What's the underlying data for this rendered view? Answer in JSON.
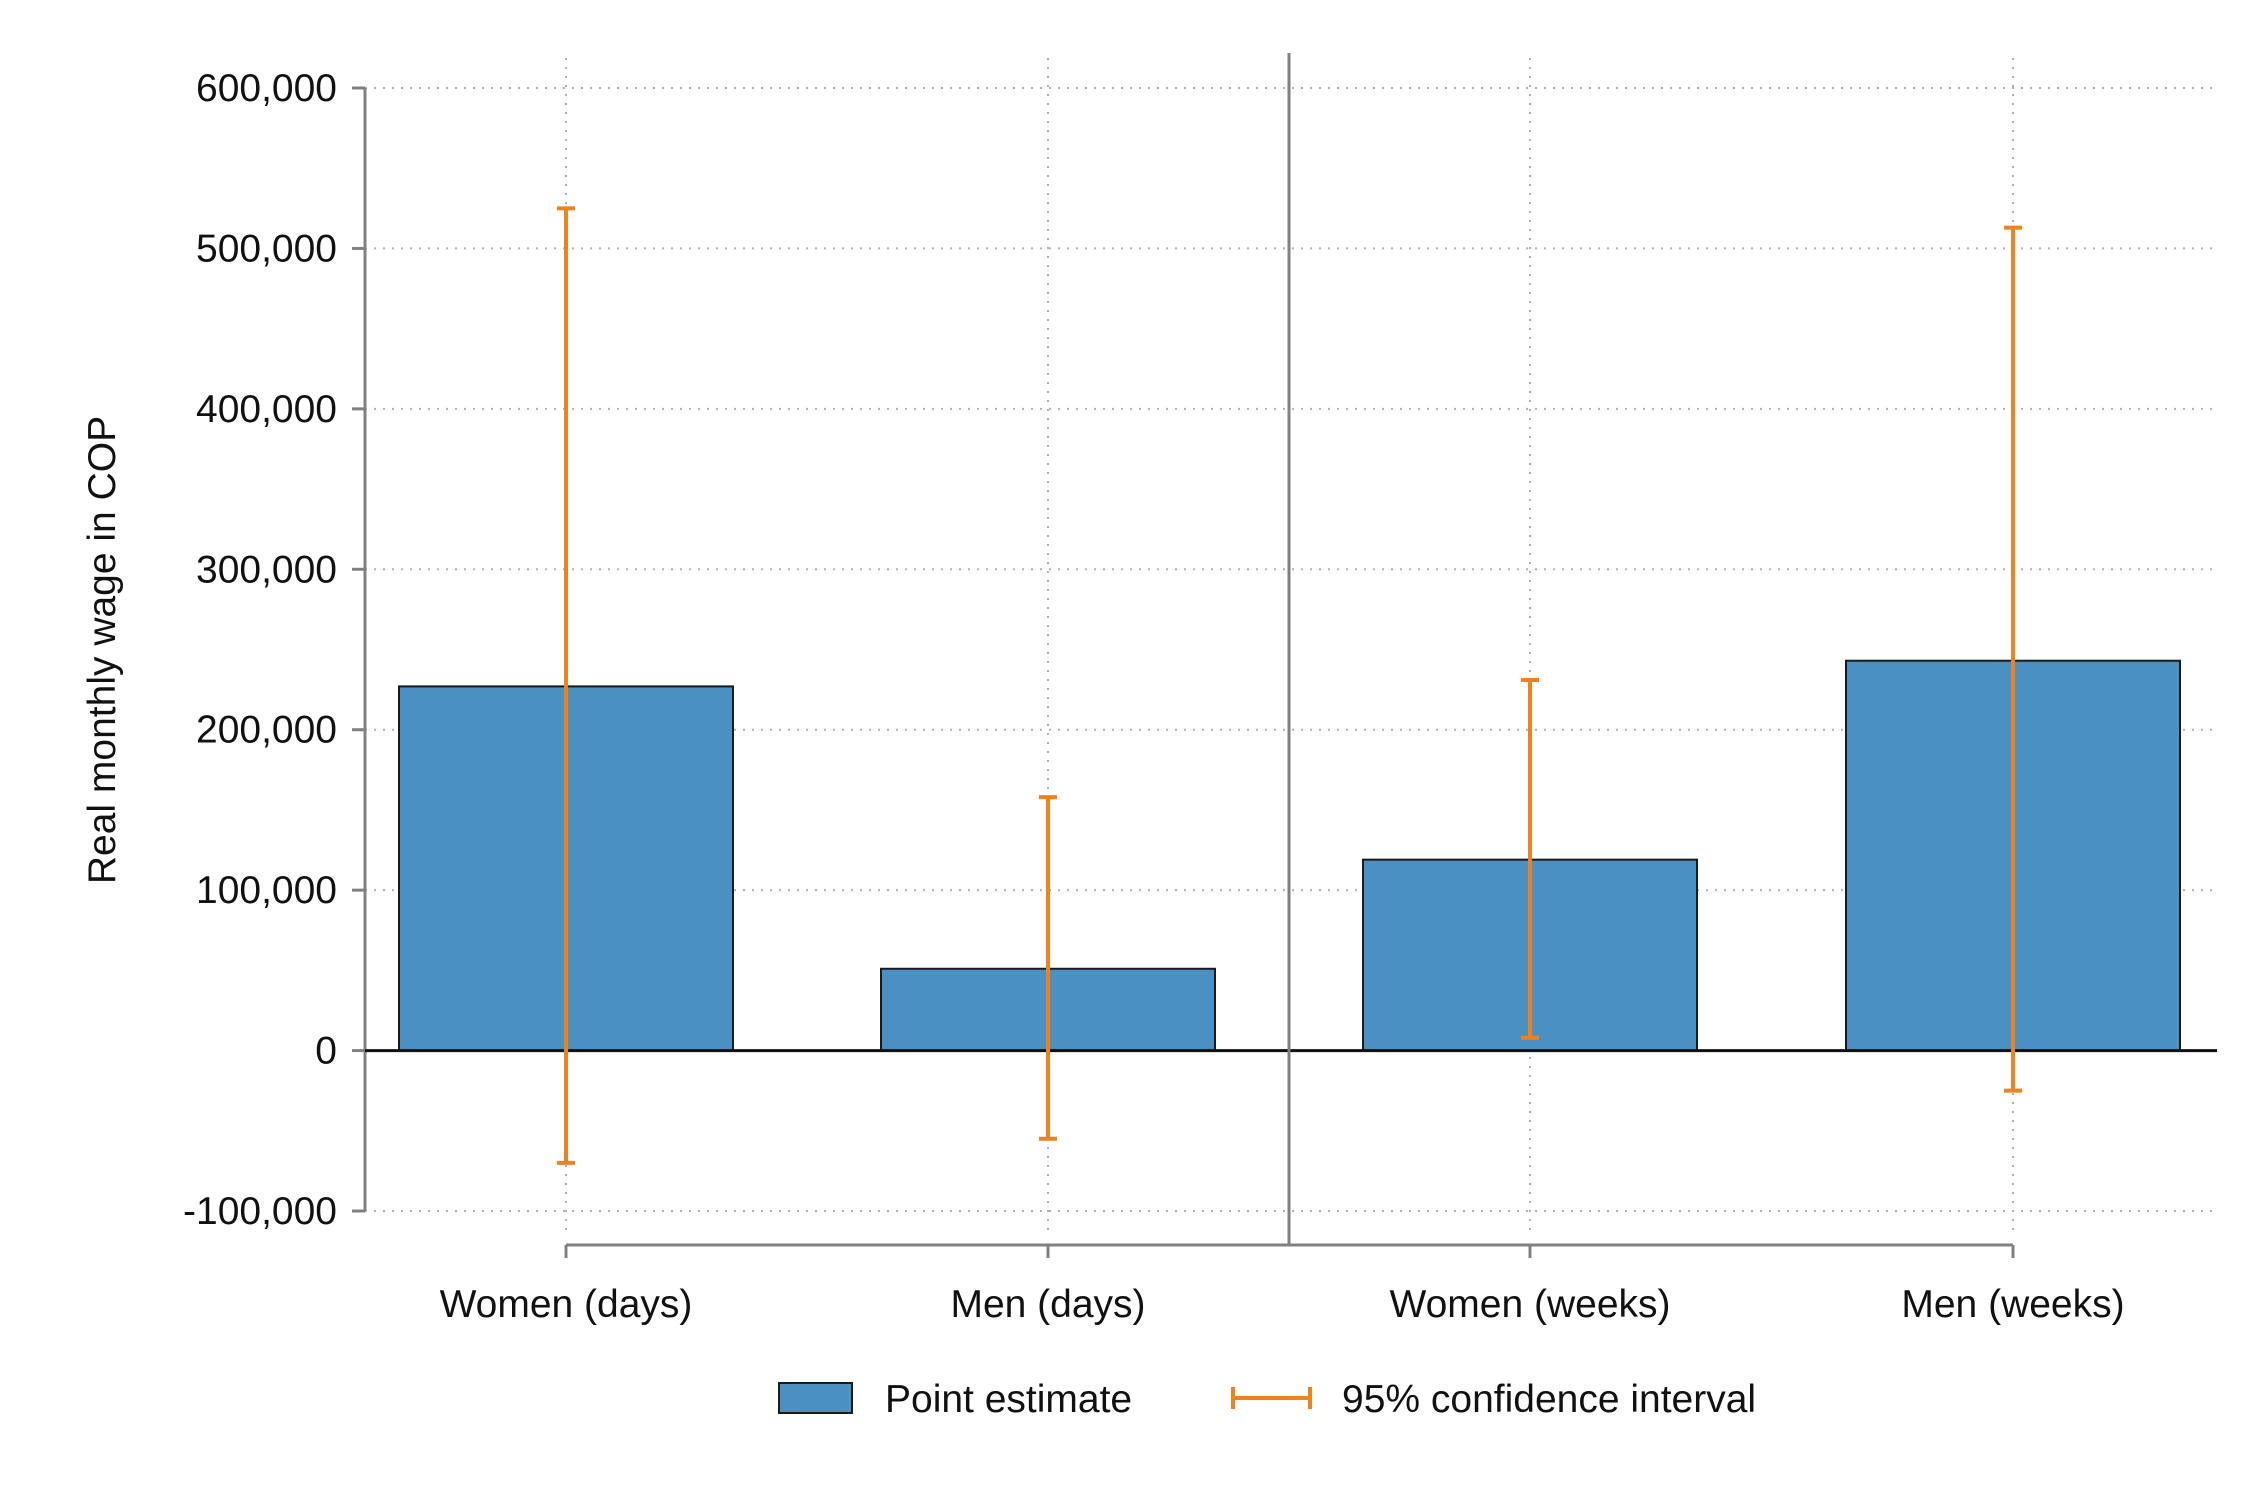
{
  "chart_data": {
    "type": "bar",
    "categories": [
      "Women (days)",
      "Men (days)",
      "Women (weeks)",
      "Men (weeks)"
    ],
    "series": [
      {
        "name": "Point estimate",
        "values": [
          227000,
          51000,
          119000,
          243000
        ],
        "ci_lower": [
          -70000,
          -55000,
          8000,
          -25000
        ],
        "ci_upper": [
          525000,
          158000,
          231000,
          513000
        ]
      }
    ],
    "ylabel": "Real monthly wage in COP",
    "xlabel": "",
    "ylim": [
      -100000,
      600000
    ],
    "yticks": [
      -100000,
      0,
      100000,
      200000,
      300000,
      400000,
      500000,
      600000
    ],
    "ytick_labels": [
      "-100,000",
      "0",
      "100,000",
      "200,000",
      "300,000",
      "400,000",
      "500,000",
      "600,000"
    ],
    "grid": true,
    "panel_separator_after_category": 1,
    "legend": {
      "position": "bottom",
      "items": [
        "Point estimate",
        "95% confidence interval"
      ]
    },
    "colors": {
      "bar_fill": "#4a90c2",
      "bar_edge": "#1a1a1a",
      "ci": "#f0821e",
      "axis": "#808080",
      "grid": "#b0b0b0"
    }
  }
}
